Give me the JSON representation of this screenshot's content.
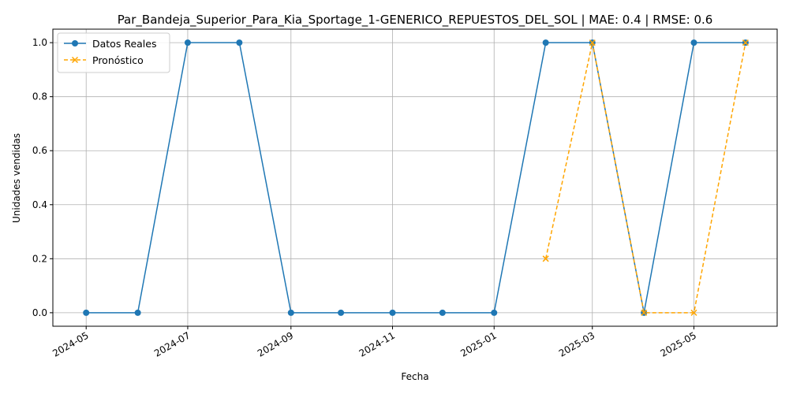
{
  "chart_data": {
    "type": "line",
    "title": "Par_Bandeja_Superior_Para_Kia_Sportage_1-GENERICO_REPUESTOS_DEL_SOL | MAE: 0.4 | RMSE: 0.6",
    "xlabel": "Fecha",
    "ylabel": "Unidades vendidas",
    "x_ticks": [
      "2024-05",
      "2024-07",
      "2024-09",
      "2024-11",
      "2025-01",
      "2025-03",
      "2025-05"
    ],
    "y_ticks": [
      "0.0",
      "0.2",
      "0.4",
      "0.6",
      "0.8",
      "1.0"
    ],
    "ylim": [
      -0.05,
      1.05
    ],
    "xlim": [
      "2024-04-11",
      "2025-06-20"
    ],
    "grid": true,
    "legend_position": "top-left",
    "series": [
      {
        "name": "Datos Reales",
        "color": "#1f77b4",
        "style": "solid",
        "marker": "circle",
        "x": [
          "2024-05-01",
          "2024-06-01",
          "2024-07-01",
          "2024-08-01",
          "2024-09-01",
          "2024-10-01",
          "2024-11-01",
          "2024-12-01",
          "2025-01-01",
          "2025-02-01",
          "2025-03-01",
          "2025-04-01",
          "2025-05-01",
          "2025-06-01"
        ],
        "values": [
          0,
          0,
          1,
          1,
          0,
          0,
          0,
          0,
          0,
          1,
          1,
          0,
          1,
          1
        ]
      },
      {
        "name": "Pronóstico",
        "color": "#ffa500",
        "style": "dashed",
        "marker": "x",
        "x": [
          "2025-02-01",
          "2025-03-01",
          "2025-04-01",
          "2025-05-01",
          "2025-06-01"
        ],
        "values": [
          0.2,
          1,
          0,
          0,
          1
        ]
      }
    ]
  }
}
